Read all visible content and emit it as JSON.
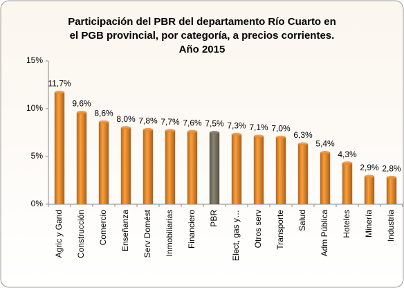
{
  "chart_data": {
    "type": "bar",
    "title": [
      "Participación del PBR del departamento Río Cuarto en",
      "el PGB provincial, por categoría, a precios corrientes.",
      "Año 2015"
    ],
    "categories": [
      "Agric y Gand",
      "Construcción",
      "Comercio",
      "Enseñanza",
      "Serv Domést",
      "Inmobiliarias",
      "Financiero",
      "PBR",
      "Elect, gas y…",
      "Otros serv",
      "Transporte",
      "Salud",
      "Adm Pública",
      "Hoteles",
      "Minería",
      "Industria"
    ],
    "values": [
      11.7,
      9.6,
      8.6,
      8.0,
      7.8,
      7.7,
      7.6,
      7.5,
      7.3,
      7.1,
      7.0,
      6.3,
      5.4,
      4.3,
      2.9,
      2.8
    ],
    "value_labels": [
      "11,7%",
      "9,6%",
      "8,6%",
      "8,0%",
      "7,8%",
      "7,7%",
      "7,6%",
      "7,5%",
      "7,3%",
      "7,1%",
      "7,0%",
      "6,3%",
      "5,4%",
      "4,3%",
      "2,9%",
      "2,8%"
    ],
    "colors": [
      "#e8892e",
      "#e8892e",
      "#e8892e",
      "#e8892e",
      "#e8892e",
      "#e8892e",
      "#e8892e",
      "#7a7362",
      "#e8892e",
      "#e8892e",
      "#e8892e",
      "#e8892e",
      "#e8892e",
      "#e8892e",
      "#e8892e",
      "#e8892e"
    ],
    "ylim": [
      0,
      15
    ],
    "yticks": [
      {
        "value": 0,
        "label": "0%"
      },
      {
        "value": 5,
        "label": "5%"
      },
      {
        "value": 10,
        "label": "10%"
      },
      {
        "value": 15,
        "label": "15%"
      }
    ],
    "grid": false
  }
}
